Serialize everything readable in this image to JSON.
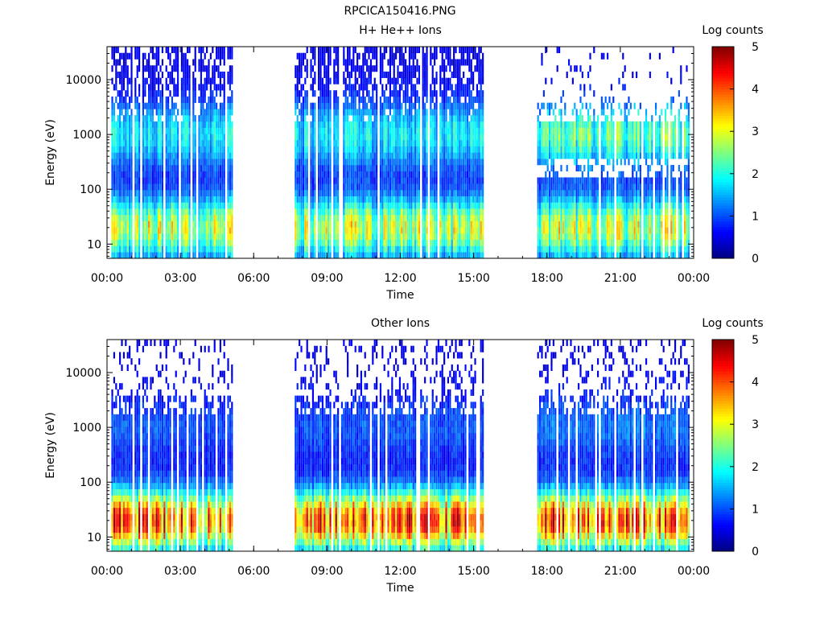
{
  "figure_title": "RPCICA150416.PNG",
  "chart_data": [
    {
      "type": "heatmap",
      "title": "H+ He++ Ions",
      "xlabel": "Time",
      "ylabel": "Energy (eV)",
      "x_tick_labels": [
        "00:00",
        "03:00",
        "06:00",
        "09:00",
        "12:00",
        "15:00",
        "18:00",
        "21:00",
        "00:00"
      ],
      "x_range_hours": [
        0,
        24
      ],
      "y_scale": "log",
      "y_tick_values": [
        10,
        100,
        1000,
        10000
      ],
      "y_tick_labels": [
        "10",
        "100",
        "1000",
        "10000"
      ],
      "y_range": [
        5.5,
        40000
      ],
      "colorbar": {
        "label": "Log counts",
        "ticks": [
          "0",
          "1",
          "2",
          "3",
          "4",
          "5"
        ],
        "range": [
          0,
          5
        ],
        "colormap": "jet"
      },
      "data_intervals_hours": [
        [
          0.1,
          5.1
        ],
        [
          7.6,
          15.4
        ],
        [
          17.6,
          23.8
        ]
      ],
      "approx_levels_log_counts": {
        "background": 0.3,
        "low_energy_peak": 3.0,
        "high_energy_peak": 2.2
      }
    },
    {
      "type": "heatmap",
      "title": "Other Ions",
      "xlabel": "Time",
      "ylabel": "Energy (eV)",
      "x_tick_labels": [
        "00:00",
        "03:00",
        "06:00",
        "09:00",
        "12:00",
        "15:00",
        "18:00",
        "21:00",
        "00:00"
      ],
      "x_range_hours": [
        0,
        24
      ],
      "y_scale": "log",
      "y_tick_values": [
        10,
        100,
        1000,
        10000
      ],
      "y_tick_labels": [
        "10",
        "100",
        "1000",
        "10000"
      ],
      "y_range": [
        5.5,
        40000
      ],
      "colorbar": {
        "label": "Log counts",
        "ticks": [
          "0",
          "1",
          "2",
          "3",
          "4",
          "5"
        ],
        "range": [
          0,
          5
        ],
        "colormap": "jet"
      },
      "data_intervals_hours": [
        [
          0.1,
          5.1
        ],
        [
          7.6,
          15.4
        ],
        [
          17.6,
          23.8
        ]
      ],
      "approx_levels_log_counts": {
        "background": 0.3,
        "low_energy_peak": 4.3,
        "high_energy_peak": 1.0
      }
    }
  ]
}
